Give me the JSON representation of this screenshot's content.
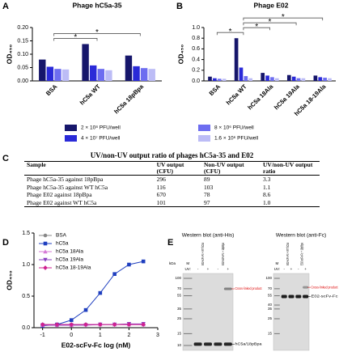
{
  "chart_data": [
    {
      "panel": "A",
      "type": "bar",
      "title": "Phage hC5a-35",
      "y_label": "OD₄₅₀",
      "categories": [
        "BSA",
        "hC5a WT",
        "hC5a 18pBpa"
      ],
      "series": [
        {
          "color": "#16166b",
          "values": [
            0.08,
            0.138,
            0.095
          ]
        },
        {
          "color": "#2a2ad8",
          "values": [
            0.053,
            0.058,
            0.055
          ]
        },
        {
          "color": "#6d6df0",
          "values": [
            0.045,
            0.045,
            0.048
          ]
        },
        {
          "color": "#bcbcf6",
          "values": [
            0.043,
            0.04,
            0.045
          ]
        }
      ],
      "ylim": [
        0,
        0.2
      ],
      "yticks": [
        {
          "value": 0,
          "label": "0.00"
        },
        0.05,
        {
          "value": 0.1,
          "label": "0.10"
        },
        0.15,
        {
          "value": 0.2,
          "label": "0.20"
        }
      ],
      "significance": [
        {
          "between": [
            0,
            1
          ],
          "label": "*"
        },
        {
          "between": [
            0,
            2
          ],
          "label": "*"
        }
      ]
    },
    {
      "panel": "B",
      "type": "bar",
      "title": "Phage E02",
      "y_label": "OD₄₅₀",
      "categories": [
        "BSA",
        "hC5a WT",
        "hC5a 18Ala",
        "hC5a 19Ala",
        "hC5a 18-19Ala"
      ],
      "series": [
        {
          "name": "2 × 10⁸ PFU/well",
          "color": "#16166b",
          "values": [
            0.08,
            0.8,
            0.15,
            0.11,
            0.1
          ]
        },
        {
          "name": "4 × 10⁷ PFU/well",
          "color": "#2a2ad8",
          "values": [
            0.05,
            0.25,
            0.1,
            0.08,
            0.07
          ]
        },
        {
          "name": "8 × 10⁶ PFU/well",
          "color": "#6d6df0",
          "values": [
            0.04,
            0.09,
            0.07,
            0.05,
            0.06
          ]
        },
        {
          "name": "1.6 × 10⁶ PFU/well",
          "color": "#bcbcf6",
          "values": [
            0.04,
            0.05,
            0.05,
            0.05,
            0.05
          ]
        }
      ],
      "ylim": [
        0,
        1
      ],
      "legend": "bottom",
      "yticks": [
        {
          "value": 0,
          "label": "0.0"
        },
        0.2,
        0.4,
        0.6,
        0.8,
        {
          "value": 1,
          "label": "1.0"
        }
      ],
      "significance": [
        {
          "between": [
            0,
            1
          ],
          "label": "*"
        },
        {
          "between": [
            1,
            2
          ],
          "label": "*"
        },
        {
          "between": [
            1,
            3
          ],
          "label": "*"
        },
        {
          "between": [
            1,
            4
          ],
          "label": "*"
        }
      ]
    },
    {
      "panel": "D",
      "type": "line",
      "y_label": "OD₄₅₀",
      "x_label": "E02-scFv-Fc log (nM)",
      "x": [
        -1,
        -0.5,
        0,
        0.5,
        1,
        1.5,
        2,
        2.5
      ],
      "series": [
        {
          "name": "BSA",
          "color": "#888888",
          "marker": "circle",
          "values": [
            0.05,
            0.05,
            0.05,
            0.05,
            0.05,
            0.05,
            0.06,
            0.05
          ]
        },
        {
          "name": "hC5a",
          "color": "#1f3fbf",
          "marker": "square",
          "values": [
            0.03,
            0.05,
            0.12,
            0.28,
            0.55,
            0.85,
            1.0,
            1.05
          ]
        },
        {
          "name": "hC5a 18Ala",
          "color": "#d67ad6",
          "marker": "triangle-up",
          "values": [
            0.04,
            0.04,
            0.04,
            0.05,
            0.05,
            0.05,
            0.05,
            0.05
          ]
        },
        {
          "name": "hC5a 19Ala",
          "color": "#8a3fc0",
          "marker": "triangle-down",
          "values": [
            0.04,
            0.04,
            0.04,
            0.04,
            0.05,
            0.05,
            0.06,
            0.06
          ]
        },
        {
          "name": "hC5a 18-19Ala",
          "color": "#d02090",
          "marker": "diamond",
          "values": [
            0.05,
            0.05,
            0.05,
            0.05,
            0.05,
            0.05,
            0.05,
            0.05
          ]
        }
      ],
      "xlim": [
        -1.3,
        3
      ],
      "xticks": [
        -1,
        0,
        1,
        2,
        3
      ],
      "ylim": [
        0,
        1.5
      ],
      "yticks": [
        {
          "value": 0,
          "label": "0.0"
        },
        0.5,
        {
          "value": 1,
          "label": "1.0"
        },
        1.5
      ],
      "legend": "upper left"
    }
  ],
  "table": {
    "panel": "C",
    "title": "UV/non-UV output ratio of phages hC5a-35 and E02",
    "header": [
      "Sample",
      "UV output (CFU)",
      "Non-UV output (CFU)",
      "UV/non-UV output ratio"
    ],
    "rows": [
      [
        "Phage hC5a-35 against 18pBpa",
        "296",
        "89",
        "3.3"
      ],
      [
        "Phage hC5a-35 against WT hC5a",
        "116",
        "103",
        "1.1"
      ],
      [
        "Phage E02 against 18pBpa",
        "670",
        "78",
        "8.6"
      ],
      [
        "Phage E02 against WT hC5a",
        "101",
        "97",
        "1.0"
      ]
    ]
  },
  "blots": {
    "panel": "E",
    "unit": "kDa",
    "panels": [
      {
        "title": "Western blot (anti-His)",
        "marker_lane": "M",
        "uv_label": "UV:",
        "lane_groups": [
          "E02-scFv-Fc + WT hC5a",
          "E02-scFv-Fc + 18pBpa"
        ],
        "uv_states": [
          "-",
          "+",
          "-",
          "+"
        ],
        "ladder": [
          "100",
          "70",
          "55",
          "35",
          "25",
          "15",
          "10"
        ],
        "annotations": [
          "Cross-linked product",
          "hC5a/18pBpa"
        ]
      },
      {
        "title": "Western blot (anti-Fc)",
        "marker_lane": "M",
        "uv_label": "UV:",
        "lane_groups": [
          "E02-scFv-Fc + WT hC5a",
          "E02-scFv-Fc + 18pBpa"
        ],
        "uv_states": [
          "-",
          "+",
          "-",
          "+"
        ],
        "ladder": [
          "100",
          "70",
          "55",
          "40",
          "35",
          "25",
          "15"
        ],
        "annotations": [
          "Cross-linked product",
          "E02-scFv-Fc"
        ]
      }
    ]
  }
}
